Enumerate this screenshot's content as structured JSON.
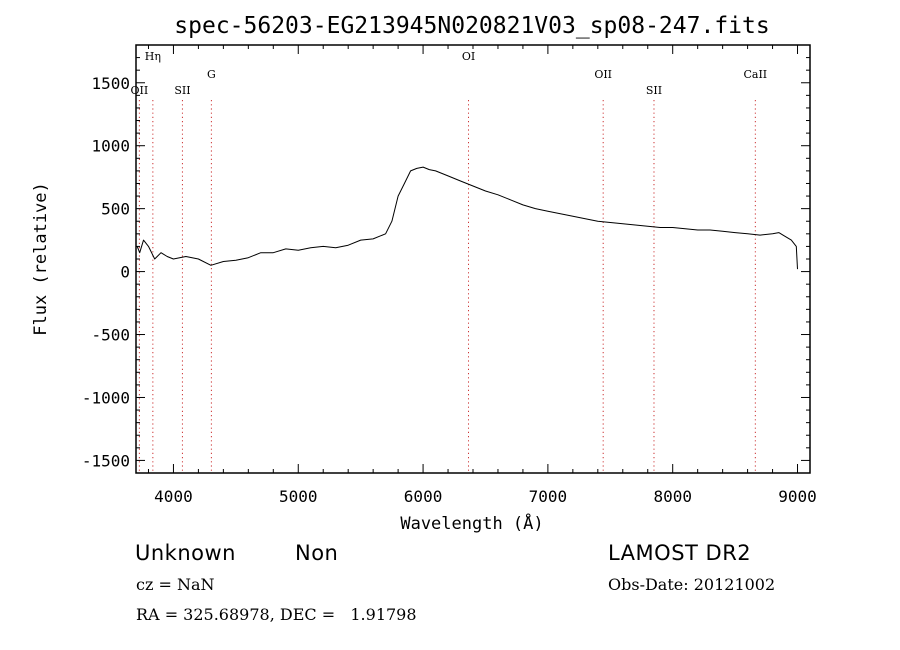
{
  "chart_data": {
    "type": "line",
    "title": "spec-56203-EG213945N020821V03_sp08-247.fits",
    "xlabel": "Wavelength (Å)",
    "ylabel": "Flux (relative)",
    "xlim": [
      3700,
      9100
    ],
    "ylim": [
      -1600,
      1800
    ],
    "xticks": [
      4000,
      5000,
      6000,
      7000,
      8000,
      9000
    ],
    "yticks": [
      -1500,
      -1000,
      -500,
      0,
      500,
      1000,
      1500
    ],
    "grid": false,
    "line_color": "#000000",
    "marker_color": "#cc3333",
    "line_markers": [
      {
        "label": "OII",
        "x": 3727
      },
      {
        "label": "Hη",
        "x": 3835
      },
      {
        "label": "SII",
        "x": 4072
      },
      {
        "label": "G",
        "x": 4304
      },
      {
        "label": "OI",
        "x": 6364
      },
      {
        "label": "OII",
        "x": 7443
      },
      {
        "label": "SII",
        "x": 7850
      },
      {
        "label": "CaII",
        "x": 8662
      }
    ],
    "series": [
      {
        "x": [
          3710,
          3730,
          3760,
          3800,
          3850,
          3900,
          3950,
          4000,
          4100,
          4200,
          4300,
          4400,
          4500,
          4600,
          4700,
          4800,
          4900,
          5000,
          5100,
          5200,
          5300,
          5400,
          5500,
          5600,
          5700,
          5750,
          5800,
          5850,
          5900,
          5950,
          6000,
          6050,
          6100,
          6150,
          6200,
          6300,
          6400,
          6500,
          6600,
          6700,
          6800,
          6900,
          7000,
          7100,
          7200,
          7300,
          7400,
          7500,
          7600,
          7700,
          7800,
          7900,
          8000,
          8100,
          8200,
          8300,
          8400,
          8500,
          8600,
          8700,
          8800,
          8850,
          8900,
          8950,
          8990,
          9000
        ],
        "y": [
          200,
          150,
          250,
          200,
          100,
          150,
          120,
          100,
          120,
          100,
          50,
          80,
          90,
          110,
          150,
          150,
          180,
          170,
          190,
          200,
          190,
          210,
          250,
          260,
          300,
          400,
          600,
          700,
          800,
          820,
          830,
          810,
          800,
          780,
          760,
          720,
          680,
          640,
          610,
          570,
          530,
          500,
          480,
          460,
          440,
          420,
          400,
          390,
          380,
          370,
          360,
          350,
          350,
          340,
          330,
          330,
          320,
          310,
          300,
          290,
          300,
          310,
          280,
          250,
          200,
          20
        ]
      }
    ]
  },
  "info": {
    "class_label": "Unknown",
    "subclass_label": "Non",
    "cz_text": "cz = NaN",
    "coords_text": "RA = 325.68978, DEC =   1.91798",
    "survey_label": "LAMOST DR2",
    "obs_date_text": "Obs-Date: 20121002"
  }
}
